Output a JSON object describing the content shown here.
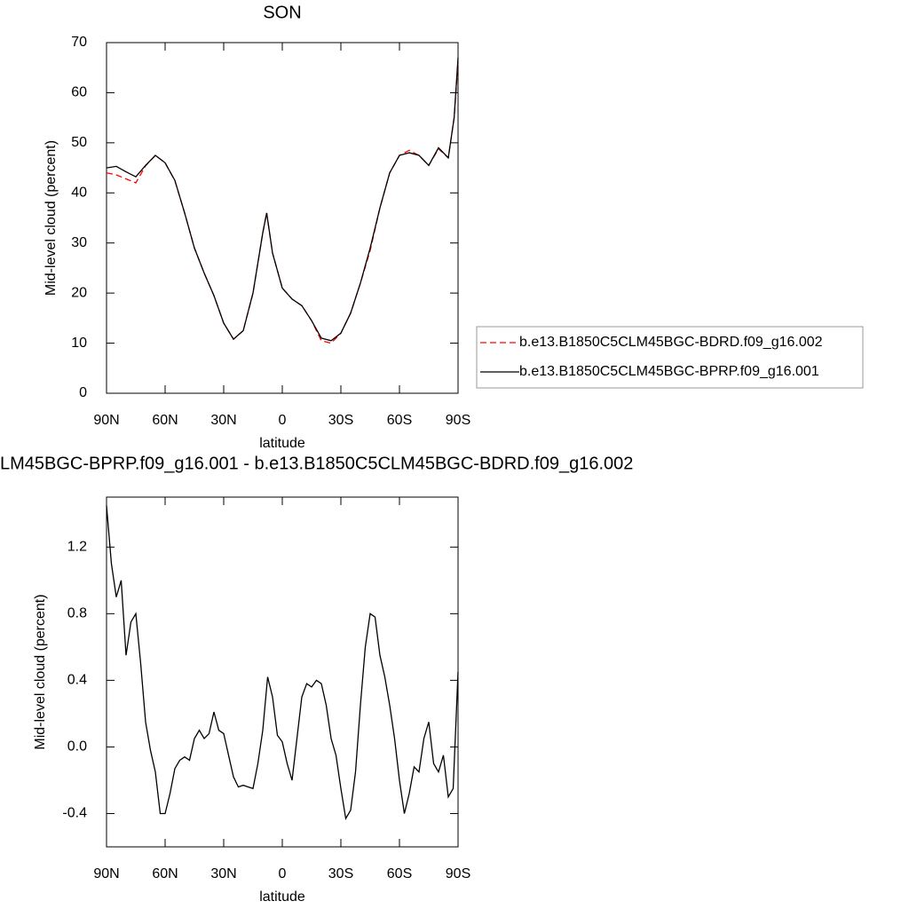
{
  "chart_data": [
    {
      "type": "line",
      "title": "SON",
      "xlabel": "latitude",
      "ylabel": "Mid-level cloud (percent)",
      "x": [
        90,
        85,
        80,
        75,
        70,
        65,
        60,
        55,
        50,
        45,
        40,
        35,
        30,
        25,
        20,
        15,
        10,
        8,
        5,
        0,
        -5,
        -10,
        -15,
        -20,
        -25,
        -30,
        -35,
        -40,
        -45,
        -50,
        -55,
        -60,
        -65,
        -70,
        -75,
        -80,
        -85,
        -88,
        -90
      ],
      "series": [
        {
          "name": "b.e13.B1850C5CLM45BGC-BDRD.f09_g16.002",
          "color": "#ff0000",
          "dashed": true,
          "values": [
            44,
            43.6,
            42.8,
            42,
            45.4,
            47.5,
            46,
            42.4,
            36,
            29,
            24,
            19.5,
            14,
            10.8,
            12.5,
            20,
            32,
            36,
            28,
            21,
            18.8,
            17.5,
            14.5,
            10.5,
            10,
            12,
            16,
            22,
            28.5,
            37,
            44,
            47.5,
            48.5,
            47.5,
            45.5,
            48.8,
            47,
            55,
            66
          ]
        },
        {
          "name": "b.e13.B1850C5CLM45BGC-BPRP.f09_g16.001",
          "color": "#000000",
          "dashed": false,
          "values": [
            45,
            45.3,
            44.2,
            43.2,
            45.5,
            47.5,
            46,
            42.5,
            36,
            29,
            24,
            19.5,
            14,
            10.8,
            12.5,
            20,
            32,
            36,
            28,
            21,
            18.8,
            17.5,
            14.5,
            11,
            10.5,
            12,
            16,
            22,
            29,
            37,
            44,
            47.5,
            48,
            47.5,
            45.5,
            49,
            47,
            55,
            67
          ]
        }
      ],
      "xlim": [
        90,
        -90
      ],
      "xticks": [
        {
          "value": 90,
          "label": "90N"
        },
        {
          "value": 60,
          "label": "60N"
        },
        {
          "value": 30,
          "label": "30N"
        },
        0,
        {
          "value": -30,
          "label": "30S"
        },
        {
          "value": -60,
          "label": "60S"
        },
        {
          "value": -90,
          "label": "90S"
        }
      ],
      "ylim": [
        0,
        70
      ],
      "yticks": [
        0,
        10,
        20,
        30,
        40,
        50,
        60,
        70
      ],
      "legend": "right"
    },
    {
      "type": "line",
      "title": "LM45BGC-BPRP.f09_g16.001 - b.e13.B1850C5CLM45BGC-BDRD.f09_g16.002",
      "xlabel": "latitude",
      "ylabel": "Mid-level cloud (percent)",
      "x": [
        90,
        87.5,
        85,
        82.5,
        80,
        77.5,
        75,
        72.5,
        70,
        67.5,
        65,
        62.5,
        60,
        57.5,
        55,
        52.5,
        50,
        47.5,
        45,
        42.5,
        40,
        37.5,
        35,
        32.5,
        30,
        27.5,
        25,
        22.5,
        20,
        17.5,
        15,
        12.5,
        10,
        7.5,
        5,
        2.5,
        0,
        -2.5,
        -5,
        -7.5,
        -10,
        -12.5,
        -15,
        -17.5,
        -20,
        -22.5,
        -25,
        -27.5,
        -30,
        -32.5,
        -35,
        -37.5,
        -40,
        -42.5,
        -45,
        -47.5,
        -50,
        -52.5,
        -55,
        -57.5,
        -60,
        -62.5,
        -65,
        -67.5,
        -70,
        -72.5,
        -75,
        -77.5,
        -80,
        -82.5,
        -85,
        -87.5,
        -90
      ],
      "series": [
        {
          "color": "#000000",
          "dashed": false,
          "values": [
            1.45,
            1.1,
            0.9,
            1.0,
            0.55,
            0.75,
            0.8,
            0.5,
            0.15,
            -0.02,
            -0.15,
            -0.4,
            -0.4,
            -0.28,
            -0.13,
            -0.08,
            -0.06,
            -0.08,
            0.05,
            0.1,
            0.05,
            0.08,
            0.21,
            0.1,
            0.08,
            -0.05,
            -0.18,
            -0.24,
            -0.23,
            -0.24,
            -0.25,
            -0.1,
            0.1,
            0.42,
            0.3,
            0.07,
            0.03,
            -0.1,
            -0.2,
            0.05,
            0.3,
            0.38,
            0.36,
            0.4,
            0.38,
            0.25,
            0.05,
            -0.05,
            -0.25,
            -0.43,
            -0.38,
            -0.15,
            0.25,
            0.6,
            0.8,
            0.78,
            0.55,
            0.42,
            0.25,
            0.05,
            -0.2,
            -0.4,
            -0.28,
            -0.12,
            -0.15,
            0.05,
            0.15,
            -0.1,
            -0.15,
            -0.05,
            -0.3,
            -0.25,
            0.45
          ]
        }
      ],
      "xlim": [
        90,
        -90
      ],
      "xticks": [
        {
          "value": 90,
          "label": "90N"
        },
        {
          "value": 60,
          "label": "60N"
        },
        {
          "value": 30,
          "label": "30N"
        },
        0,
        {
          "value": -30,
          "label": "30S"
        },
        {
          "value": -60,
          "label": "60S"
        },
        {
          "value": -90,
          "label": "90S"
        }
      ],
      "ylim": [
        -0.6,
        1.5
      ],
      "yticks": [
        -0.4,
        {
          "value": 0,
          "label": "0.0"
        },
        0.4,
        0.8,
        1.2
      ]
    }
  ]
}
